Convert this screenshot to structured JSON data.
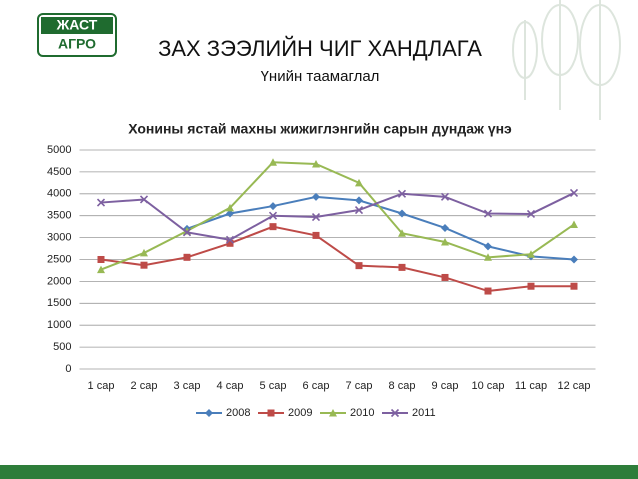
{
  "logo": [
    "ЖАСТ",
    "АГРО"
  ],
  "chart_data": {
    "type": "line",
    "title": "ЗАХ ЗЭЭЛИЙН ЧИГ ХАНДЛАГА",
    "subtitle": "Үнийн таамаглал",
    "chart_title": "Хонины ястай махны жижиглэнгийн сарын дундаж үнэ",
    "categories": [
      "1 сар",
      "2 сар",
      "3 сар",
      "4 сар",
      "5 сар",
      "6 сар",
      "7 сар",
      "8 сар",
      "9 сар",
      "10 сар",
      "11 сар",
      "12 сар"
    ],
    "series": [
      {
        "name": "2008",
        "color": "#4a7ebb",
        "values": [
          null,
          null,
          3200,
          3550,
          3720,
          3930,
          3850,
          3550,
          3220,
          2800,
          2570,
          2500
        ]
      },
      {
        "name": "2009",
        "color": "#be4b48",
        "values": [
          2500,
          2370,
          2550,
          2870,
          3250,
          3050,
          2360,
          2320,
          2090,
          1780,
          1890,
          1890
        ]
      },
      {
        "name": "2010",
        "color": "#98b954",
        "values": [
          2270,
          2650,
          3150,
          3680,
          4720,
          4680,
          4250,
          3100,
          2900,
          2550,
          2620,
          3300
        ]
      },
      {
        "name": "2011",
        "color": "#7d60a0",
        "values": [
          3800,
          3870,
          3120,
          2950,
          3500,
          3470,
          3630,
          4000,
          3930,
          3550,
          3540,
          4020
        ]
      }
    ],
    "ylim": [
      0,
      5000
    ],
    "yticks": [
      0,
      500,
      1000,
      1500,
      2000,
      2500,
      3000,
      3500,
      4000,
      4500,
      5000
    ],
    "grid": true,
    "legend": "bottom"
  }
}
